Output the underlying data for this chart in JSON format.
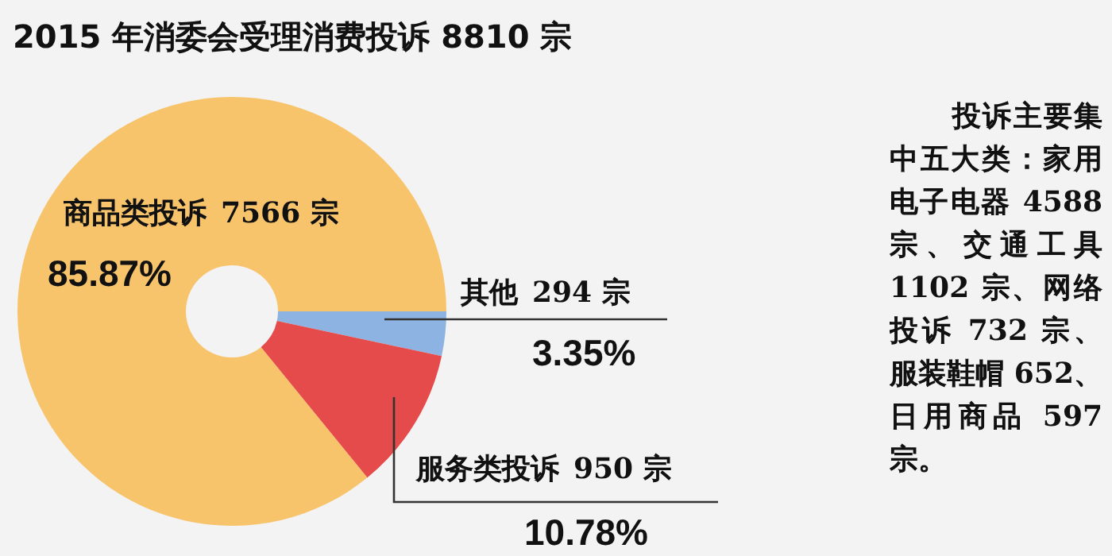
{
  "chart_data": {
    "type": "pie",
    "title": "2015 年消委会受理消费投诉 8810 宗",
    "categories": [
      "商品类投诉",
      "其他",
      "服务类投诉"
    ],
    "values": [
      7566,
      294,
      950
    ],
    "colors": [
      "#f7c46c",
      "#8db3e2",
      "#e64b4b"
    ],
    "value_labels": [
      "7566 宗",
      "294 宗",
      "950 宗"
    ],
    "annotations": [
      {
        "text": "85.87%",
        "x": "商品类投诉"
      },
      {
        "text": "3.35%",
        "x": "其他"
      },
      {
        "text": "10.78%",
        "x": "服务类投诉"
      },
      "投诉主要集中五大类：家用电子电器 4588 宗、交通工具 1102 宗、网络投诉 732 宗、服装鞋帽 652、日用商品 597 宗。"
    ]
  }
}
